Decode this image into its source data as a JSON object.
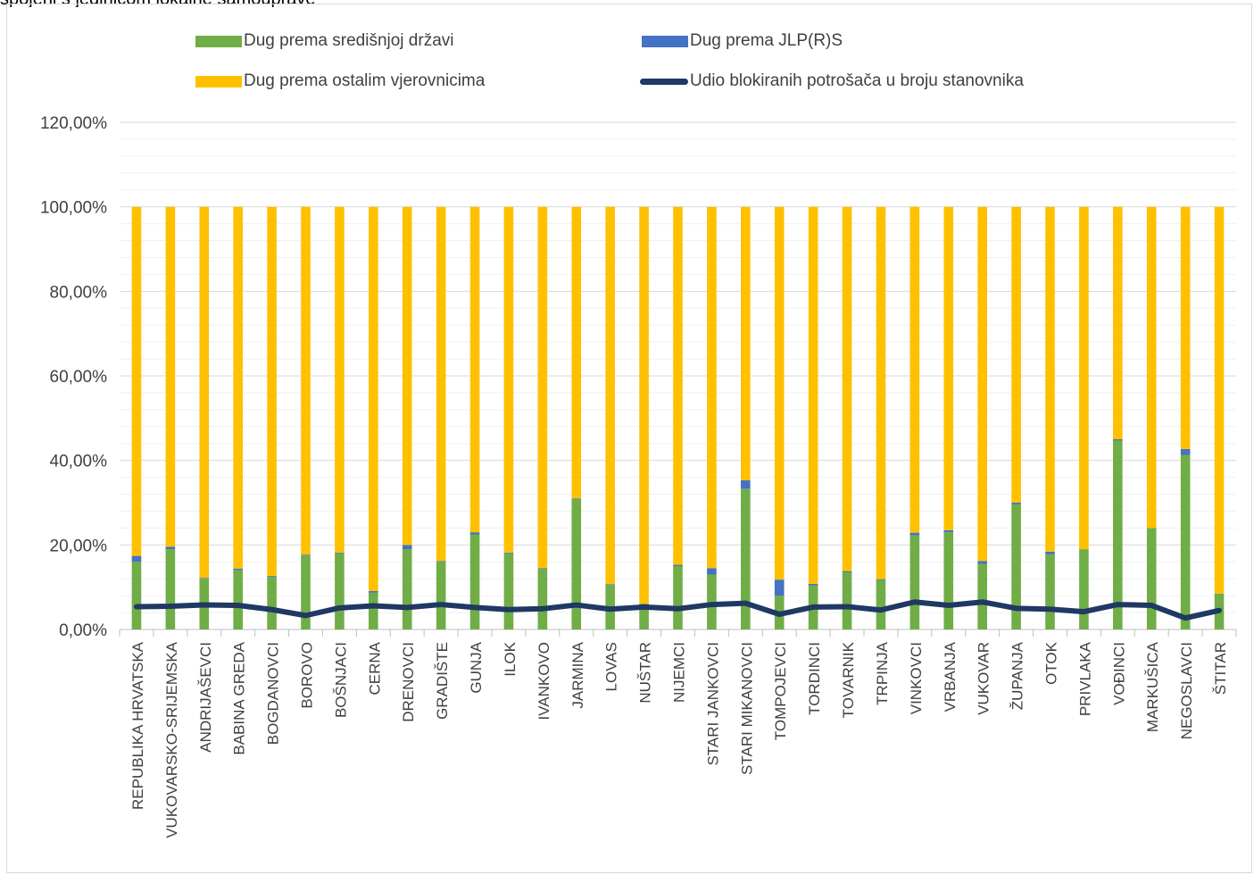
{
  "page": {
    "top_caption": "spojeni s jedinicom lokalne samouprave"
  },
  "chart_data": {
    "type": "bar",
    "stacked": true,
    "percent_stacked": true,
    "title": "",
    "xlabel": "",
    "ylabel": "",
    "ylim": [
      0,
      1.2
    ],
    "yticks": [
      0,
      0.2,
      0.4,
      0.6,
      0.8,
      1.0,
      1.2
    ],
    "ytick_labels": [
      "0,00%",
      "20,00%",
      "40,00%",
      "60,00%",
      "80,00%",
      "100,00%",
      "120,00%"
    ],
    "grid": true,
    "legend_position": "top",
    "categories": [
      "REPUBLIKA HRVATSKA",
      "VUKOVARSKO-SRIJEMSKA",
      "ANDRIJAŠEVCI",
      "BABINA GREDA",
      "BOGDANOVCI",
      "BOROVO",
      "BOŠNJACI",
      "CERNA",
      "DRENOVCI",
      "GRADIŠTE",
      "GUNJA",
      "ILOK",
      "IVANKOVO",
      "JARMINA",
      "LOVAS",
      "NUŠTAR",
      "NIJEMCI",
      "STARI JANKOVCI",
      "STARI MIKANOVCI",
      "TOMPOJEVCI",
      "TORDINCI",
      "TOVARNIK",
      "TRPINJA",
      "VINKOVCI",
      "VRBANJA",
      "VUKOVAR",
      "ŽUPANJA",
      "OTOK",
      "PRIVLAKA",
      "VOĐINCI",
      "MARKUŠICA",
      "NEGOSLAVCI",
      "ŠTITAR"
    ],
    "series": [
      {
        "name": "Dug prema središnjoj državi",
        "kind": "bar",
        "color": "#70ad47",
        "values": [
          0.16,
          0.19,
          0.12,
          0.14,
          0.125,
          0.175,
          0.18,
          0.087,
          0.19,
          0.16,
          0.225,
          0.18,
          0.143,
          0.31,
          0.105,
          0.06,
          0.15,
          0.13,
          0.333,
          0.08,
          0.104,
          0.135,
          0.117,
          0.223,
          0.23,
          0.155,
          0.296,
          0.178,
          0.19,
          0.447,
          0.24,
          0.413,
          0.085
        ]
      },
      {
        "name": "Dug prema JLP(R)S",
        "kind": "bar",
        "color": "#4472c4",
        "values": [
          0.014,
          0.006,
          0.002,
          0.004,
          0.002,
          0.002,
          0.002,
          0.004,
          0.01,
          0.002,
          0.005,
          0.002,
          0.002,
          0.001,
          0.002,
          0.001,
          0.003,
          0.015,
          0.02,
          0.038,
          0.004,
          0.003,
          0.002,
          0.006,
          0.005,
          0.007,
          0.004,
          0.006,
          0.0,
          0.003,
          0.0,
          0.014,
          0.0
        ]
      },
      {
        "name": "Dug prema ostalim vjerovnicima",
        "kind": "bar",
        "color": "#ffc000",
        "values": [
          0.826,
          0.804,
          0.878,
          0.856,
          0.873,
          0.823,
          0.818,
          0.909,
          0.8,
          0.838,
          0.77,
          0.818,
          0.855,
          0.689,
          0.893,
          0.939,
          0.847,
          0.855,
          0.647,
          0.882,
          0.892,
          0.862,
          0.881,
          0.771,
          0.765,
          0.838,
          0.7,
          0.816,
          0.81,
          0.55,
          0.76,
          0.573,
          0.915
        ]
      },
      {
        "name": "Udio blokiranih potrošača u broju stanovnika",
        "kind": "line",
        "color": "#1f3864",
        "values": [
          0.054,
          0.055,
          0.058,
          0.057,
          0.047,
          0.033,
          0.051,
          0.056,
          0.052,
          0.059,
          0.052,
          0.047,
          0.049,
          0.058,
          0.048,
          0.053,
          0.049,
          0.059,
          0.062,
          0.036,
          0.053,
          0.054,
          0.046,
          0.065,
          0.057,
          0.065,
          0.05,
          0.048,
          0.042,
          0.059,
          0.057,
          0.027,
          0.045
        ]
      }
    ]
  }
}
